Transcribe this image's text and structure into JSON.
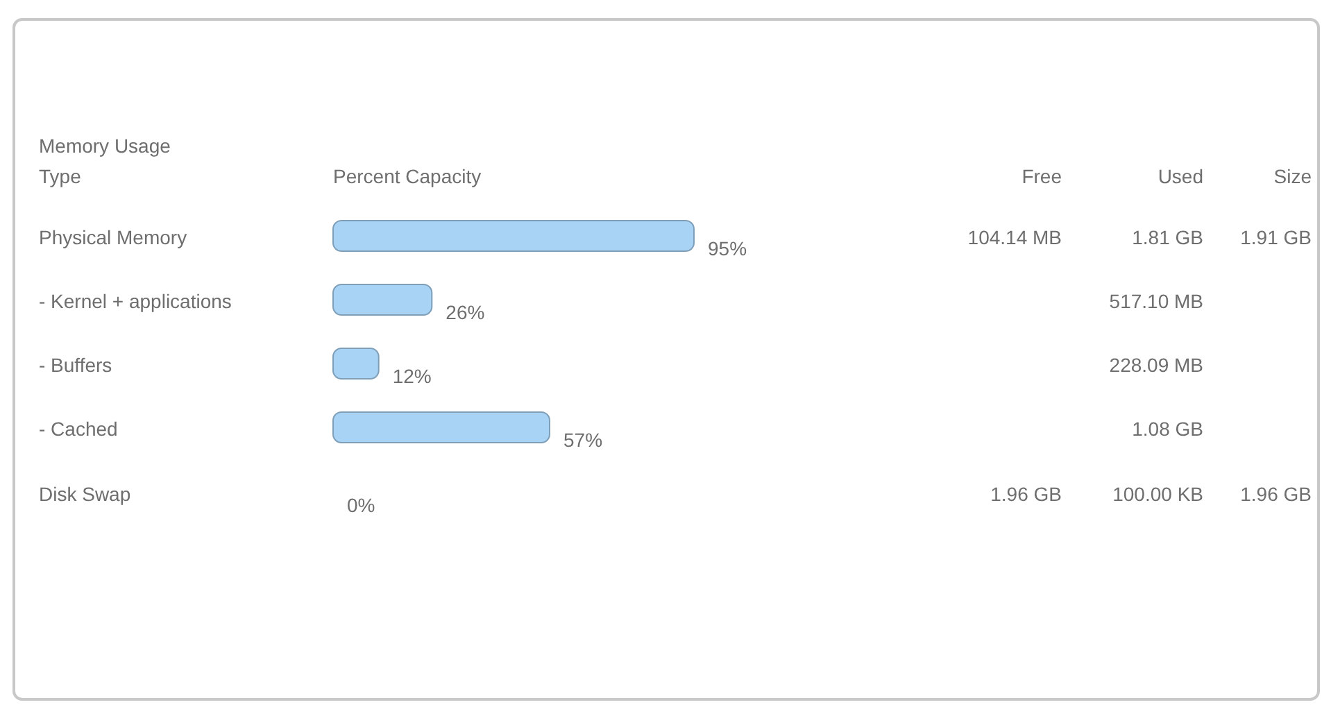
{
  "chart_data": {
    "type": "bar",
    "orientation": "horizontal",
    "title": "Memory Usage",
    "ylabel": "Type",
    "xlabel": "Percent Capacity",
    "categories": [
      "Physical Memory",
      "- Kernel + applications",
      "- Buffers",
      "- Cached",
      "Disk Swap"
    ],
    "values": [
      95,
      26,
      12,
      57,
      0
    ],
    "value_labels": [
      "95%",
      "26%",
      "12%",
      "57%",
      "0%"
    ],
    "color": "#a9d3f5",
    "tick_labels": false,
    "annotations": [
      "Free",
      "Used",
      "Size",
      "104.14 MB",
      "1.81 GB",
      "1.91 GB",
      "517.10 MB",
      "228.09 MB",
      "1.08 GB",
      "1.96 GB",
      "100.00 KB",
      "1.96 GB"
    ]
  }
}
